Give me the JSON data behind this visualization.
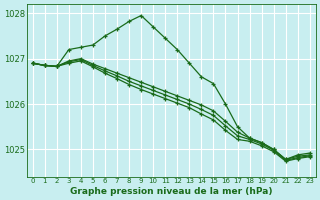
{
  "title": "Graphe pression niveau de la mer (hPa)",
  "background_color": "#c8eef0",
  "grid_color": "#ffffff",
  "line_color": "#1a6b1a",
  "xlim": [
    -0.5,
    23.5
  ],
  "ylim": [
    1024.4,
    1028.2
  ],
  "yticks": [
    1025,
    1026,
    1027,
    1028
  ],
  "xticks": [
    0,
    1,
    2,
    3,
    4,
    5,
    6,
    7,
    8,
    9,
    10,
    11,
    12,
    13,
    14,
    15,
    16,
    17,
    18,
    19,
    20,
    21,
    22,
    23
  ],
  "series": [
    [
      1026.9,
      1026.85,
      1026.83,
      1027.2,
      1027.25,
      1027.3,
      1027.5,
      1027.65,
      1027.82,
      1027.95,
      1027.7,
      1027.45,
      1027.2,
      1026.9,
      1026.6,
      1026.45,
      1026.0,
      1025.5,
      1025.25,
      1025.15,
      1025.0,
      1024.78,
      1024.88,
      1024.92
    ],
    [
      1026.9,
      1026.85,
      1026.83,
      1026.95,
      1027.0,
      1026.88,
      1026.78,
      1026.68,
      1026.58,
      1026.48,
      1026.38,
      1026.28,
      1026.18,
      1026.08,
      1025.98,
      1025.85,
      1025.62,
      1025.38,
      1025.25,
      1025.15,
      1025.0,
      1024.78,
      1024.85,
      1024.88
    ],
    [
      1026.9,
      1026.85,
      1026.83,
      1026.93,
      1026.98,
      1026.85,
      1026.73,
      1026.62,
      1026.5,
      1026.4,
      1026.3,
      1026.2,
      1026.1,
      1026.0,
      1025.88,
      1025.75,
      1025.52,
      1025.3,
      1025.22,
      1025.12,
      1024.98,
      1024.76,
      1024.82,
      1024.86
    ],
    [
      1026.9,
      1026.85,
      1026.83,
      1026.9,
      1026.95,
      1026.82,
      1026.68,
      1026.56,
      1026.43,
      1026.32,
      1026.22,
      1026.12,
      1026.02,
      1025.92,
      1025.78,
      1025.65,
      1025.42,
      1025.22,
      1025.18,
      1025.08,
      1024.95,
      1024.74,
      1024.8,
      1024.84
    ]
  ]
}
